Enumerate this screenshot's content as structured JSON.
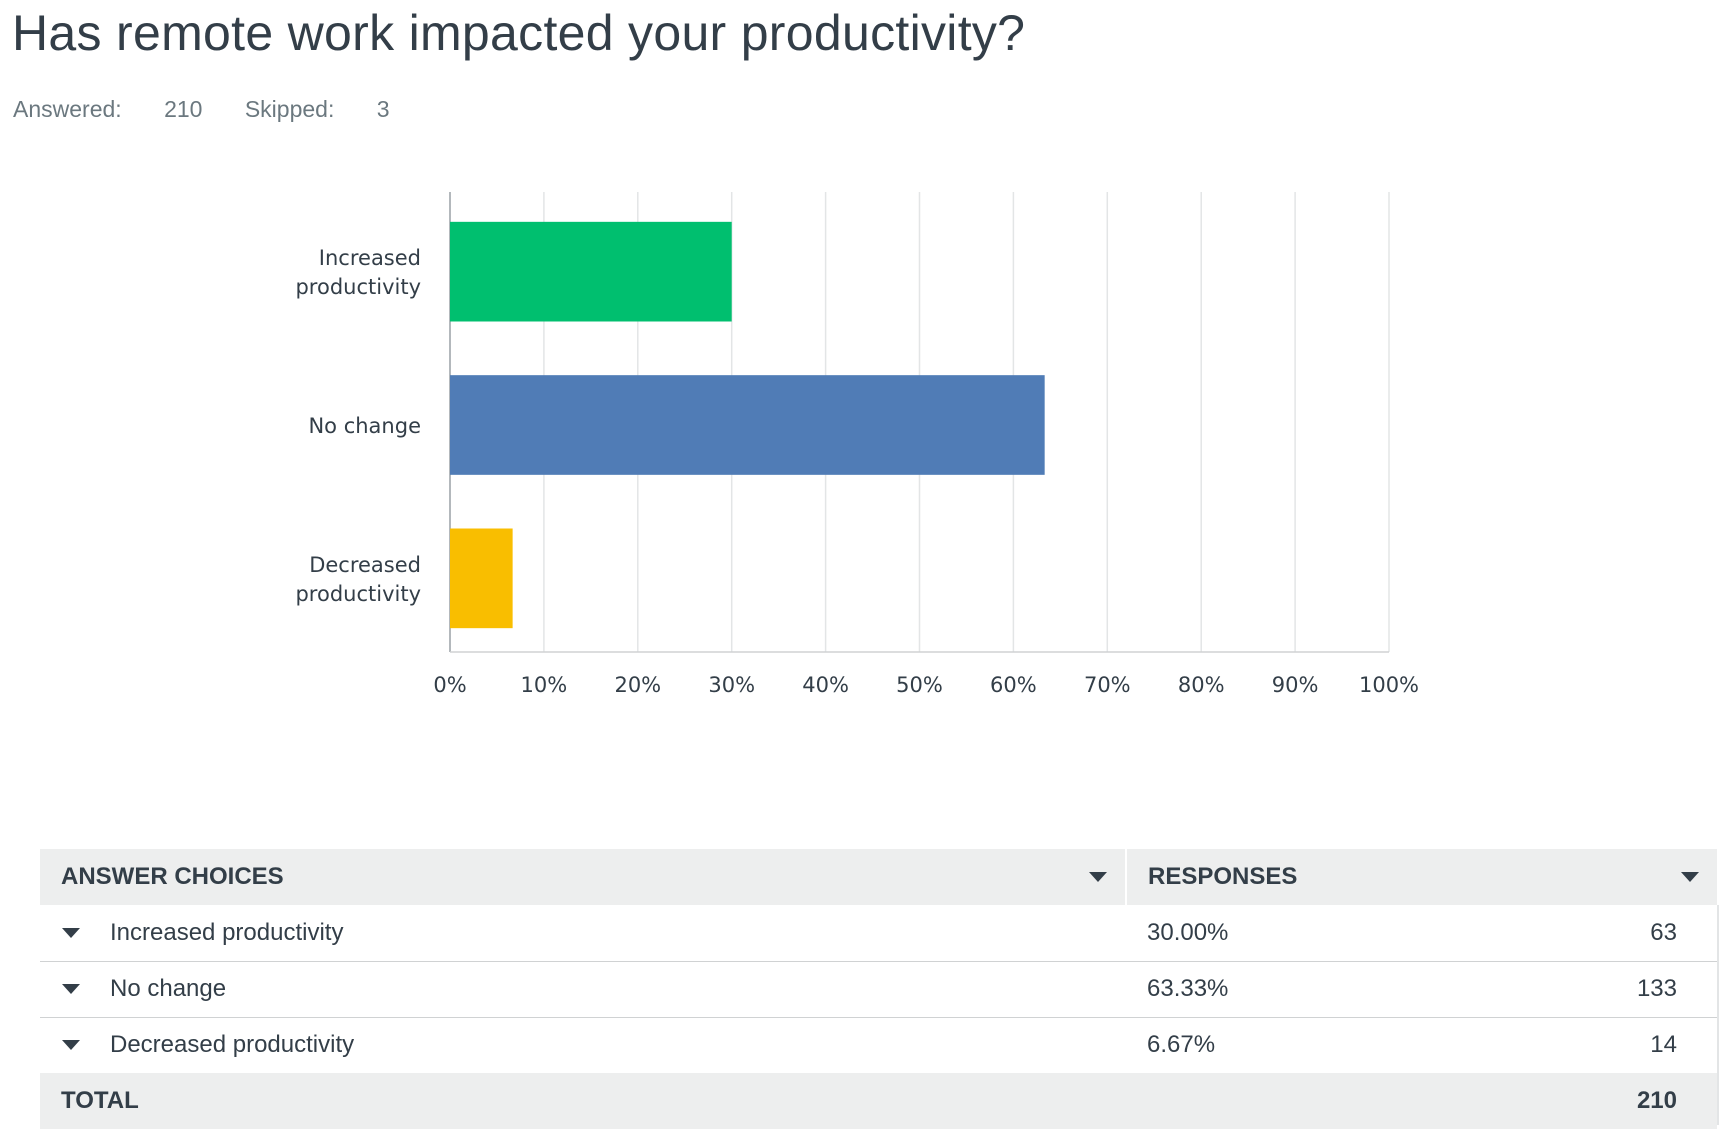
{
  "question": {
    "title": "Has remote work impacted your productivity?",
    "answered_label": "Answered:",
    "answered_value": "210",
    "skipped_label": "Skipped:",
    "skipped_value": "3"
  },
  "chart_data": {
    "type": "bar",
    "orientation": "horizontal",
    "categories": [
      "Increased productivity",
      "No change",
      "Decreased productivity"
    ],
    "category_label_lines": [
      [
        "Increased",
        "productivity"
      ],
      [
        "No change"
      ],
      [
        "Decreased",
        "productivity"
      ]
    ],
    "values": [
      30.0,
      63.33,
      6.67
    ],
    "colors": [
      "#00bf6f",
      "#507cb6",
      "#f9be00"
    ],
    "xlim": [
      0,
      100
    ],
    "x_ticks": [
      "0%",
      "10%",
      "20%",
      "30%",
      "40%",
      "50%",
      "60%",
      "70%",
      "80%",
      "90%",
      "100%"
    ],
    "grid": true,
    "title": "",
    "xlabel": "",
    "ylabel": ""
  },
  "table": {
    "headers": {
      "choices": "ANSWER CHOICES",
      "responses": "RESPONSES"
    },
    "rows": [
      {
        "choice": "Increased productivity",
        "percent": "30.00%",
        "count": "63"
      },
      {
        "choice": "No change",
        "percent": "63.33%",
        "count": "133"
      },
      {
        "choice": "Decreased productivity",
        "percent": "6.67%",
        "count": "14"
      }
    ],
    "total_label": "TOTAL",
    "total_value": "210"
  },
  "icons": {
    "sort": "chevron-down-icon",
    "expand_row": "caret-down-icon"
  }
}
